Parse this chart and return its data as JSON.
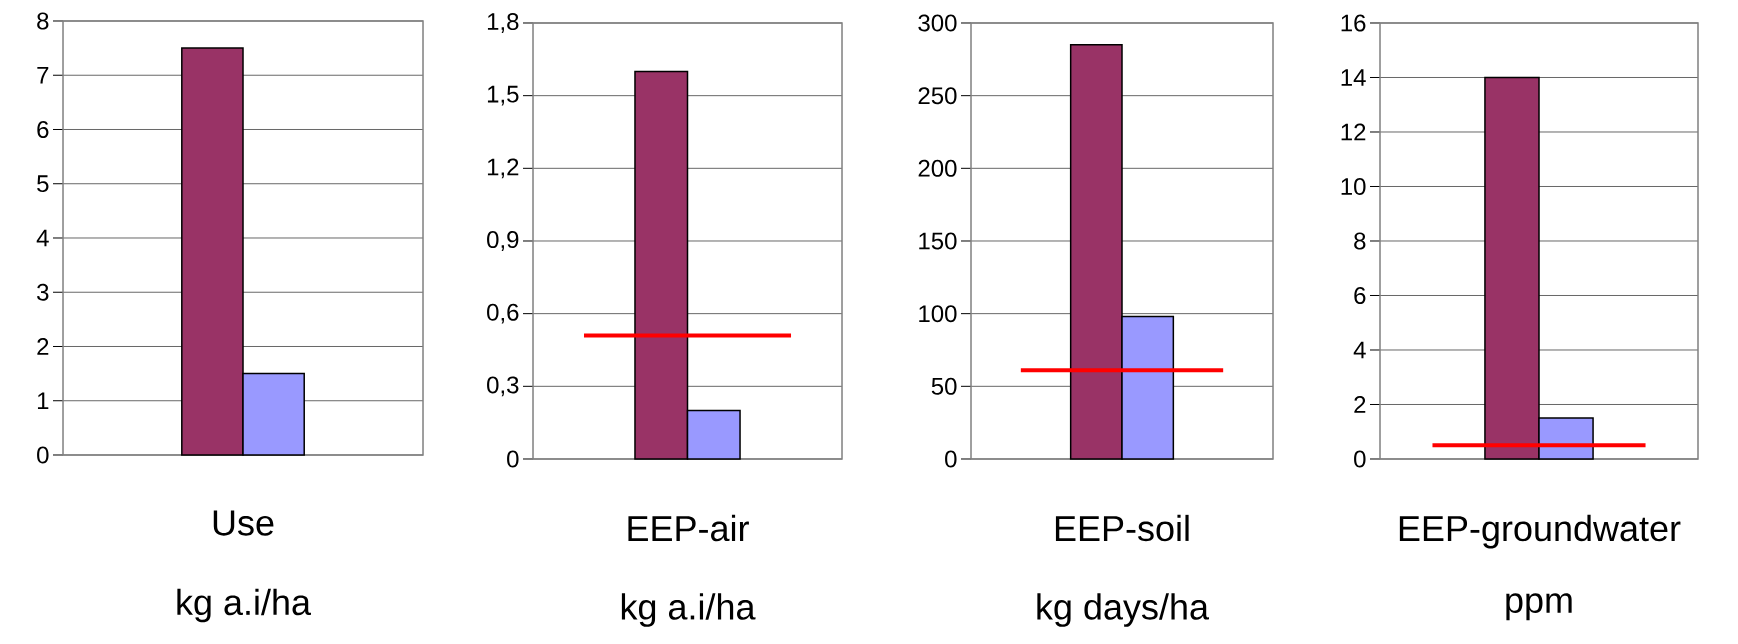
{
  "chart_data": [
    {
      "type": "bar",
      "xlabel": "Use",
      "annotations": [
        "kg a.i/ha"
      ],
      "categories": [
        null
      ],
      "grid": "y",
      "series": [
        {
          "color": "#993366",
          "values": [
            7.5
          ]
        },
        {
          "color": "#9999ff",
          "values": [
            1.5
          ]
        }
      ],
      "ylim": [
        0,
        8
      ],
      "yticks": [
        0,
        1,
        2,
        3,
        4,
        5,
        6,
        7,
        8
      ]
    },
    {
      "type": "bar",
      "xlabel": "EEP-air",
      "annotations": [
        "kg a.i/ha"
      ],
      "categories": [
        null
      ],
      "grid": "y",
      "series": [
        {
          "color": "#993366",
          "values": [
            1.6
          ]
        },
        {
          "color": "#9999ff",
          "values": [
            0.2
          ]
        }
      ],
      "ylim": [
        0,
        1.8
      ],
      "yticks": [
        0,
        {
          "value": 0.3,
          "label": "0,3"
        },
        {
          "value": 0.6,
          "label": "0,6"
        },
        {
          "value": 0.9,
          "label": "0,9"
        },
        {
          "value": 1.2,
          "label": "1,2"
        },
        {
          "value": 1.5,
          "label": "1,5"
        },
        {
          "value": 1.8,
          "label": "1,8"
        }
      ],
      "ref_lines": [
        {
          "axis": "y",
          "value": 0.51,
          "color": "#ff0000"
        }
      ]
    },
    {
      "type": "bar",
      "xlabel": "EEP-soil",
      "annotations": [
        "kg days/ha"
      ],
      "categories": [
        null
      ],
      "grid": "y",
      "series": [
        {
          "color": "#993366",
          "values": [
            285
          ]
        },
        {
          "color": "#9999ff",
          "values": [
            98
          ]
        }
      ],
      "ylim": [
        0,
        300
      ],
      "yticks": [
        0,
        50,
        100,
        150,
        200,
        250,
        300
      ],
      "ref_lines": [
        {
          "axis": "y",
          "value": 61,
          "color": "#ff0000"
        }
      ]
    },
    {
      "type": "bar",
      "xlabel": "EEP-groundwater",
      "annotations": [
        "ppm"
      ],
      "categories": [
        null
      ],
      "grid": "y",
      "series": [
        {
          "color": "#993366",
          "values": [
            14
          ]
        },
        {
          "color": "#9999ff",
          "values": [
            1.5
          ]
        }
      ],
      "ylim": [
        0,
        16
      ],
      "yticks": [
        0,
        2,
        4,
        6,
        8,
        10,
        12,
        14,
        16
      ],
      "ref_lines": [
        {
          "axis": "y",
          "value": 0.5,
          "color": "#ff0000"
        }
      ]
    }
  ]
}
